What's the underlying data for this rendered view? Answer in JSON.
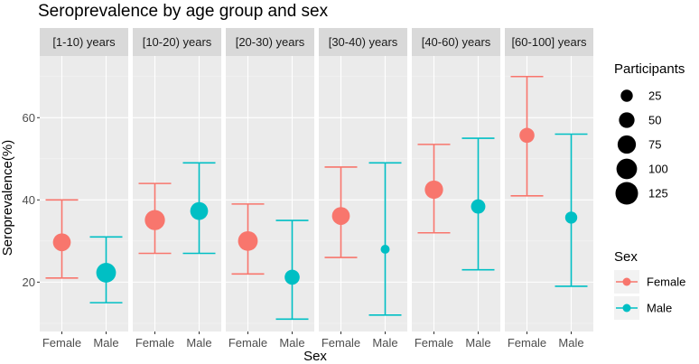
{
  "chart_data": {
    "type": "scatter",
    "title": "Seroprevalence by age group and sex",
    "xlabel": "Sex",
    "ylabel": "Seroprevalence(%)",
    "ylim": [
      8,
      75
    ],
    "yticks": [
      20,
      40,
      60
    ],
    "categories": [
      "Female",
      "Male"
    ],
    "facets": [
      {
        "label": "[1-10) years",
        "points": [
          {
            "sex": "Female",
            "value": 29.7,
            "lower": 21,
            "upper": 40,
            "participants": 70
          },
          {
            "sex": "Male",
            "value": 22.3,
            "lower": 15,
            "upper": 31,
            "participants": 90
          }
        ]
      },
      {
        "label": "[10-20) years",
        "points": [
          {
            "sex": "Female",
            "value": 35.1,
            "lower": 27,
            "upper": 44,
            "participants": 95
          },
          {
            "sex": "Male",
            "value": 37.3,
            "lower": 27,
            "upper": 49,
            "participants": 70
          }
        ]
      },
      {
        "label": "[20-30) years",
        "points": [
          {
            "sex": "Female",
            "value": 30.0,
            "lower": 22,
            "upper": 39,
            "participants": 90
          },
          {
            "sex": "Male",
            "value": 21.2,
            "lower": 11,
            "upper": 35,
            "participants": 45
          }
        ]
      },
      {
        "label": "[30-40) years",
        "points": [
          {
            "sex": "Female",
            "value": 36.1,
            "lower": 26,
            "upper": 48,
            "participants": 70
          },
          {
            "sex": "Male",
            "value": 28.0,
            "lower": 12,
            "upper": 49,
            "participants": 10
          }
        ]
      },
      {
        "label": "[40-60) years",
        "points": [
          {
            "sex": "Female",
            "value": 42.5,
            "lower": 32,
            "upper": 53.5,
            "participants": 75
          },
          {
            "sex": "Male",
            "value": 38.4,
            "lower": 23,
            "upper": 55,
            "participants": 40
          }
        ]
      },
      {
        "label": "[60-100] years",
        "points": [
          {
            "sex": "Female",
            "value": 55.7,
            "lower": 41,
            "upper": 70,
            "participants": 45
          },
          {
            "sex": "Male",
            "value": 35.7,
            "lower": 19,
            "upper": 56,
            "participants": 25
          }
        ]
      }
    ],
    "size_legend": {
      "title": "Participants",
      "values": [
        25,
        50,
        75,
        100,
        125
      ]
    },
    "color_legend": {
      "title": "Sex",
      "entries": [
        {
          "label": "Female",
          "color": "#F8766D"
        },
        {
          "label": "Male",
          "color": "#00BFC4"
        }
      ]
    }
  }
}
